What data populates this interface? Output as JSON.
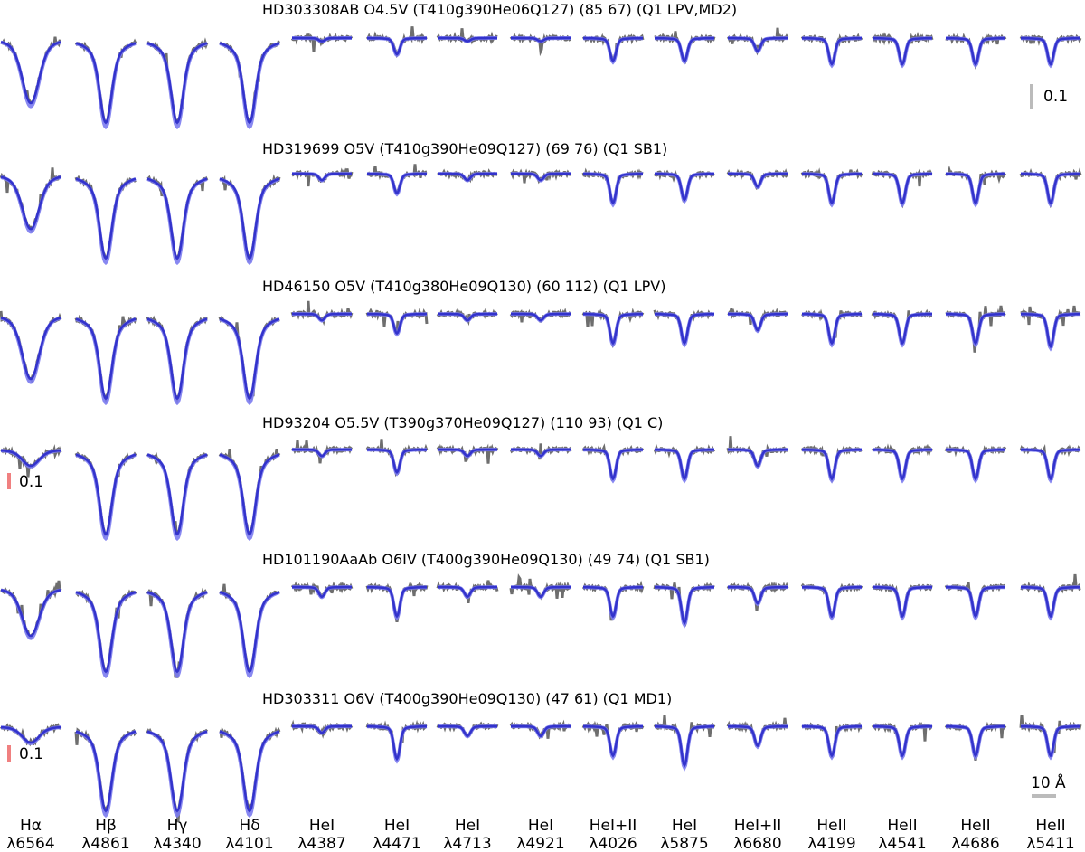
{
  "chart_data": {
    "type": "line",
    "colors": {
      "observed": "#6e6e6e",
      "model": "#3333cc",
      "model_light": "#7b7bef",
      "scale_gray": "#bbbbbb",
      "scale_red": "#f08080"
    },
    "lines": [
      {
        "label": "Hα",
        "wavelength": "λ6564"
      },
      {
        "label": "Hβ",
        "wavelength": "λ4861"
      },
      {
        "label": "Hγ",
        "wavelength": "λ4340"
      },
      {
        "label": "Hδ",
        "wavelength": "λ4101"
      },
      {
        "label": "HeI",
        "wavelength": "λ4387"
      },
      {
        "label": "HeI",
        "wavelength": "λ4471"
      },
      {
        "label": "HeI",
        "wavelength": "λ4713"
      },
      {
        "label": "HeI",
        "wavelength": "λ4921"
      },
      {
        "label": "HeI+II",
        "wavelength": "λ4026"
      },
      {
        "label": "HeI",
        "wavelength": "λ5875"
      },
      {
        "label": "HeI+II",
        "wavelength": "λ6680"
      },
      {
        "label": "HeII",
        "wavelength": "λ4199"
      },
      {
        "label": "HeII",
        "wavelength": "λ4541"
      },
      {
        "label": "HeII",
        "wavelength": "λ4686"
      },
      {
        "label": "HeII",
        "wavelength": "λ5411"
      }
    ],
    "stars": [
      {
        "title": "HD303308AB O4.5V (T410g390He06Q127) (85 67) (Q1 LPV,MD2)",
        "depths": [
          0.2,
          0.26,
          0.26,
          0.26,
          0.01,
          0.05,
          0.01,
          0.01,
          0.07,
          0.07,
          0.04,
          0.08,
          0.08,
          0.08,
          0.08
        ]
      },
      {
        "title": "HD319699 O5V (T410g390He09Q127) (69 76) (Q1 SB1)",
        "depths": [
          0.17,
          0.26,
          0.26,
          0.26,
          0.02,
          0.06,
          0.02,
          0.02,
          0.09,
          0.08,
          0.04,
          0.09,
          0.09,
          0.09,
          0.09
        ]
      },
      {
        "title": "HD46150 O5V (T410g380He09Q130) (60 112) (Q1 LPV)",
        "depths": [
          0.2,
          0.26,
          0.26,
          0.26,
          0.02,
          0.06,
          0.02,
          0.02,
          0.09,
          0.09,
          0.05,
          0.09,
          0.09,
          0.09,
          0.1
        ]
      },
      {
        "title": "HD93204 O5.5V (T390g370He09Q127) (110 93) (Q1 C)",
        "depths": [
          0.05,
          0.26,
          0.26,
          0.26,
          0.02,
          0.07,
          0.02,
          0.02,
          0.09,
          0.09,
          0.05,
          0.09,
          0.09,
          0.09,
          0.09
        ]
      },
      {
        "title": "HD101190AaAb O6IV (T400g390He09Q130) (49 74) (Q1 SB1)",
        "depths": [
          0.15,
          0.26,
          0.26,
          0.26,
          0.03,
          0.09,
          0.03,
          0.03,
          0.09,
          0.11,
          0.05,
          0.09,
          0.09,
          0.09,
          0.09
        ]
      },
      {
        "title": "HD303311 O6V (T400g390He09Q130) (47 61) (Q1 MD1)",
        "depths": [
          0.05,
          0.26,
          0.26,
          0.26,
          0.02,
          0.1,
          0.03,
          0.03,
          0.09,
          0.12,
          0.06,
          0.09,
          0.09,
          0.09,
          0.09
        ]
      }
    ],
    "scale_bars": [
      {
        "text": "0.1",
        "row": 1,
        "column": 15,
        "color": "gray"
      },
      {
        "text": "0.1",
        "row": 4,
        "column": 1,
        "color": "red"
      },
      {
        "text": "0.1",
        "row": 6,
        "column": 1,
        "color": "red"
      },
      {
        "text": "10 Å",
        "row": 6,
        "column": 15,
        "color": "gray"
      }
    ]
  }
}
